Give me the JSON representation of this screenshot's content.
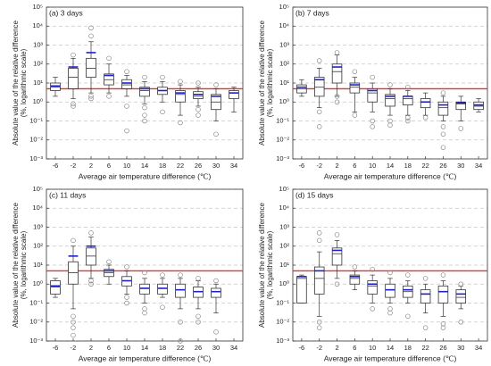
{
  "chart_data": [
    {
      "type": "box",
      "title": "(a) 3 days",
      "xlabel": "Average air temperature difference (℃)",
      "ylabel": [
        "Absolute value of the relative difference",
        "(%, logarithmic scale)"
      ],
      "categories": [
        "-6",
        "-2",
        "2",
        "6",
        "10",
        "14",
        "18",
        "22",
        "26",
        "30",
        "34"
      ],
      "log_scale": true,
      "grid": true,
      "ylim": [
        0.001,
        100000
      ],
      "yticks": [
        {
          "value": 0.001,
          "label": "10⁻³"
        },
        {
          "value": 0.01,
          "label": "10⁻²"
        },
        {
          "value": 0.1,
          "label": "10⁻¹"
        },
        {
          "value": 1,
          "label": "10⁰"
        },
        {
          "value": 10,
          "label": "10¹"
        },
        {
          "value": 100,
          "label": "10²"
        },
        {
          "value": 1000,
          "label": "10³"
        },
        {
          "value": 10000,
          "label": "10⁴"
        },
        {
          "value": 100000,
          "label": "10⁵"
        }
      ],
      "reference_line": 5,
      "reference_color": "#e8312f",
      "box_color": "#333333",
      "mean_color": "#2020c8",
      "outlier_color": "#888888",
      "boxes": [
        {
          "low": 2,
          "q1": 4,
          "median": 6,
          "q3": 10,
          "high": 20,
          "mean": 7,
          "outliers": []
        },
        {
          "low": 1.5,
          "q1": 5,
          "median": 20,
          "q3": 60,
          "high": 200,
          "mean": 70,
          "outliers": [
            0.6,
            0.8,
            300
          ]
        },
        {
          "low": 3,
          "q1": 20,
          "median": 60,
          "q3": 200,
          "high": 1500,
          "mean": 400,
          "outliers": [
            1.5,
            2,
            3000,
            8000
          ]
        },
        {
          "low": 3,
          "q1": 8,
          "median": 15,
          "q3": 30,
          "high": 100,
          "mean": 25,
          "outliers": [
            2,
            200
          ]
        },
        {
          "low": 2,
          "q1": 5,
          "median": 8,
          "q3": 15,
          "high": 25,
          "mean": 10,
          "outliers": [
            0.03,
            0.6,
            40
          ]
        },
        {
          "low": 0.8,
          "q1": 2,
          "median": 4,
          "q3": 6,
          "high": 12,
          "mean": 5,
          "outliers": [
            0.1,
            0.2,
            0.5,
            20
          ]
        },
        {
          "low": 1,
          "q1": 2.5,
          "median": 4,
          "q3": 6,
          "high": 12,
          "mean": 4,
          "outliers": [
            0.3,
            20
          ]
        },
        {
          "low": 0.2,
          "q1": 1,
          "median": 2.5,
          "q3": 4,
          "high": 8,
          "mean": 3,
          "outliers": [
            0.08,
            12
          ]
        },
        {
          "low": 0.6,
          "q1": 1.5,
          "median": 2,
          "q3": 3.5,
          "high": 6,
          "mean": 2.5,
          "outliers": [
            0.2,
            0.4,
            10
          ]
        },
        {
          "low": 0.1,
          "q1": 0.4,
          "median": 1,
          "q3": 2.5,
          "high": 5,
          "mean": 2,
          "outliers": [
            0.02,
            8
          ]
        },
        {
          "low": 0.3,
          "q1": 1.5,
          "median": 3,
          "q3": 4,
          "high": 6,
          "mean": 3,
          "outliers": []
        }
      ]
    },
    {
      "type": "box",
      "title": "(b) 7 days",
      "xlabel": "Average air temperature difference (℃)",
      "ylabel": [
        "Absolute value of the relative difference",
        "(%, logarithmic scale)"
      ],
      "categories": [
        "-6",
        "-2",
        "2",
        "6",
        "10",
        "14",
        "18",
        "22",
        "26",
        "30",
        "34"
      ],
      "log_scale": true,
      "grid": true,
      "ylim": [
        0.001,
        100000
      ],
      "yticks": [
        {
          "value": 0.001,
          "label": "10⁻³"
        },
        {
          "value": 0.01,
          "label": "10⁻²"
        },
        {
          "value": 0.1,
          "label": "10⁻¹"
        },
        {
          "value": 1,
          "label": "10⁰"
        },
        {
          "value": 10,
          "label": "10¹"
        },
        {
          "value": 100,
          "label": "10²"
        },
        {
          "value": 1000,
          "label": "10³"
        },
        {
          "value": 10000,
          "label": "10⁴"
        },
        {
          "value": 100000,
          "label": "10⁵"
        }
      ],
      "reference_line": 5,
      "reference_color": "#e8312f",
      "box_color": "#333333",
      "mean_color": "#2020c8",
      "outlier_color": "#888888",
      "boxes": [
        {
          "low": 2,
          "q1": 3,
          "median": 5,
          "q3": 8,
          "high": 15,
          "mean": 6,
          "outliers": []
        },
        {
          "low": 0.5,
          "q1": 2,
          "median": 6,
          "q3": 20,
          "high": 60,
          "mean": 15,
          "outliers": [
            0.05,
            0.3,
            150
          ]
        },
        {
          "low": 2,
          "q1": 10,
          "median": 40,
          "q3": 100,
          "high": 300,
          "mean": 70,
          "outliers": [
            1,
            2,
            400
          ]
        },
        {
          "low": 0.3,
          "q1": 3,
          "median": 6,
          "q3": 10,
          "high": 20,
          "mean": 8,
          "outliers": [
            0.2,
            40
          ]
        },
        {
          "low": 0.3,
          "q1": 1,
          "median": 3,
          "q3": 5,
          "high": 10,
          "mean": 4,
          "outliers": [
            0.05,
            0.1,
            20
          ]
        },
        {
          "low": 0.2,
          "q1": 0.6,
          "median": 1.5,
          "q3": 2.5,
          "high": 5,
          "mean": 2,
          "outliers": [
            0.06,
            0.1,
            8
          ]
        },
        {
          "low": 0.2,
          "q1": 0.7,
          "median": 1.5,
          "q3": 2,
          "high": 4,
          "mean": 2,
          "outliers": [
            0.1,
            0.15,
            6
          ]
        },
        {
          "low": 0.2,
          "q1": 0.5,
          "median": 1,
          "q3": 1.5,
          "high": 3,
          "mean": 1,
          "outliers": [
            0.15
          ]
        },
        {
          "low": 0.1,
          "q1": 0.2,
          "median": 0.5,
          "q3": 1,
          "high": 2,
          "mean": 0.7,
          "outliers": [
            0.004,
            0.02,
            0.05,
            3
          ]
        },
        {
          "low": 0.1,
          "q1": 0.4,
          "median": 0.8,
          "q3": 1,
          "high": 2,
          "mean": 0.9,
          "outliers": [
            0.04
          ]
        },
        {
          "low": 0.3,
          "q1": 0.4,
          "median": 0.6,
          "q3": 1,
          "high": 1.5,
          "mean": 0.7,
          "outliers": []
        }
      ]
    },
    {
      "type": "box",
      "title": "(c) 11 days",
      "xlabel": "Average air temperature difference (℃)",
      "ylabel": [
        "Absolute value of the relative difference",
        "(%, logarithmic scale)"
      ],
      "categories": [
        "-6",
        "-2",
        "2",
        "6",
        "10",
        "14",
        "18",
        "22",
        "26",
        "30",
        "34"
      ],
      "log_scale": true,
      "grid": true,
      "ylim": [
        0.001,
        100000
      ],
      "yticks": [
        {
          "value": 0.001,
          "label": "10⁻³"
        },
        {
          "value": 0.01,
          "label": "10⁻²"
        },
        {
          "value": 0.1,
          "label": "10⁻¹"
        },
        {
          "value": 1,
          "label": "10⁰"
        },
        {
          "value": 10,
          "label": "10¹"
        },
        {
          "value": 100,
          "label": "10²"
        },
        {
          "value": 1000,
          "label": "10³"
        },
        {
          "value": 10000,
          "label": "10⁴"
        },
        {
          "value": 100000,
          "label": "10⁵"
        }
      ],
      "reference_line": 5,
      "reference_color": "#e8312f",
      "box_color": "#333333",
      "mean_color": "#2020c8",
      "outlier_color": "#888888",
      "boxes": [
        {
          "low": 0.2,
          "q1": 0.3,
          "median": 0.7,
          "q3": 1.5,
          "high": 2,
          "mean": 0.8,
          "outliers": []
        },
        {
          "low": 0.05,
          "q1": 1,
          "median": 4,
          "q3": 15,
          "high": 100,
          "mean": 30,
          "outliers": [
            0.002,
            0.005,
            0.01,
            0.02,
            200
          ]
        },
        {
          "low": 2,
          "q1": 10,
          "median": 30,
          "q3": 80,
          "high": 300,
          "mean": 100,
          "outliers": [
            1,
            1.5,
            500
          ]
        },
        {
          "low": 1,
          "q1": 2.5,
          "median": 4,
          "q3": 6,
          "high": 10,
          "mean": 5,
          "outliers": [
            15
          ]
        },
        {
          "low": 0.3,
          "q1": 0.8,
          "median": 1.5,
          "q3": 2.5,
          "high": 5,
          "mean": 1.5,
          "outliers": [
            0.1,
            0.2,
            8
          ]
        },
        {
          "low": 0.1,
          "q1": 0.3,
          "median": 0.6,
          "q3": 1,
          "high": 2,
          "mean": 0.6,
          "outliers": [
            0.03,
            0.05,
            4
          ]
        },
        {
          "low": 0.2,
          "q1": 0.3,
          "median": 0.6,
          "q3": 1,
          "high": 2,
          "mean": 0.6,
          "outliers": [
            0.06,
            3
          ]
        },
        {
          "low": 0.05,
          "q1": 0.2,
          "median": 0.5,
          "q3": 1,
          "high": 2,
          "mean": 0.5,
          "outliers": [
            0.001,
            0.01,
            3
          ]
        },
        {
          "low": 0.05,
          "q1": 0.2,
          "median": 0.4,
          "q3": 0.7,
          "high": 1.5,
          "mean": 0.4,
          "outliers": [
            0.01,
            0.02,
            2
          ]
        },
        {
          "low": 0.03,
          "q1": 0.2,
          "median": 0.4,
          "q3": 0.6,
          "high": 1,
          "mean": 0.4,
          "outliers": [
            0.003,
            1.5
          ]
        },
        null
      ]
    },
    {
      "type": "box",
      "title": "(d) 15 days",
      "xlabel": "Average air temperature difference (℃)",
      "ylabel": [
        "Absolute value of the relative difference",
        "(%, logarithmic scale)"
      ],
      "categories": [
        "-6",
        "-2",
        "2",
        "6",
        "10",
        "14",
        "18",
        "22",
        "26",
        "30",
        "34"
      ],
      "log_scale": true,
      "grid": true,
      "ylim": [
        0.001,
        100000
      ],
      "yticks": [
        {
          "value": 0.001,
          "label": "10⁻³"
        },
        {
          "value": 0.01,
          "label": "10⁻²"
        },
        {
          "value": 0.1,
          "label": "10⁻¹"
        },
        {
          "value": 1,
          "label": "10⁰"
        },
        {
          "value": 10,
          "label": "10¹"
        },
        {
          "value": 100,
          "label": "10²"
        },
        {
          "value": 1000,
          "label": "10³"
        },
        {
          "value": 10000,
          "label": "10⁴"
        },
        {
          "value": 100000,
          "label": "10⁵"
        }
      ],
      "reference_line": 5,
      "reference_color": "#e8312f",
      "box_color": "#333333",
      "mean_color": "#2020c8",
      "outlier_color": "#888888",
      "boxes": [
        {
          "low": 0.1,
          "q1": 0.1,
          "median": 2,
          "q3": 2.5,
          "high": 3,
          "mean": 2.5,
          "outliers": []
        },
        {
          "low": 0.02,
          "q1": 0.3,
          "median": 2,
          "q3": 8,
          "high": 50,
          "mean": 5,
          "outliers": [
            0.005,
            0.01,
            200,
            500
          ]
        },
        {
          "low": 2,
          "q1": 10,
          "median": 40,
          "q3": 80,
          "high": 200,
          "mean": 60,
          "outliers": [
            1,
            400
          ]
        },
        {
          "low": 0.5,
          "q1": 1,
          "median": 2,
          "q3": 3,
          "high": 5,
          "mean": 2.5,
          "outliers": [
            8
          ]
        },
        {
          "low": 0.1,
          "q1": 0.3,
          "median": 0.8,
          "q3": 1.5,
          "high": 3,
          "mean": 1,
          "outliers": [
            0.05,
            6
          ]
        },
        {
          "low": 0.1,
          "q1": 0.2,
          "median": 0.5,
          "q3": 1,
          "high": 2,
          "mean": 0.5,
          "outliers": [
            0.03,
            0.05,
            4
          ]
        },
        {
          "low": 0.1,
          "q1": 0.2,
          "median": 0.4,
          "q3": 0.8,
          "high": 1.5,
          "mean": 0.5,
          "outliers": [
            0.02,
            3
          ]
        },
        {
          "low": 0.03,
          "q1": 0.1,
          "median": 0.3,
          "q3": 0.5,
          "high": 1,
          "mean": 0.3,
          "outliers": [
            0.005,
            2
          ]
        },
        {
          "low": 0.02,
          "q1": 0.1,
          "median": 0.4,
          "q3": 0.8,
          "high": 1.5,
          "mean": 0.4,
          "outliers": [
            0.005,
            0.008,
            3
          ]
        },
        {
          "low": 0.05,
          "q1": 0.1,
          "median": 0.2,
          "q3": 0.5,
          "high": 0.8,
          "mean": 0.3,
          "outliers": [
            0.01,
            1
          ]
        },
        null
      ]
    }
  ]
}
